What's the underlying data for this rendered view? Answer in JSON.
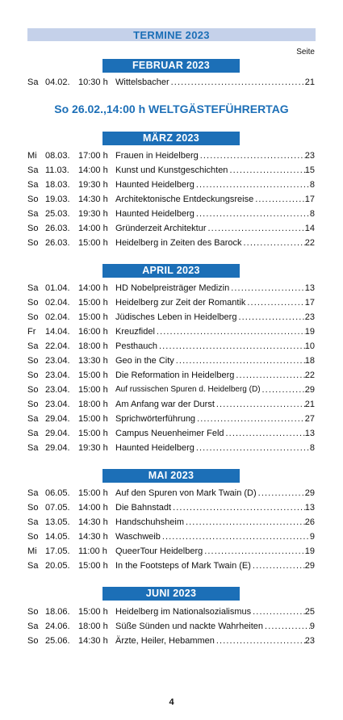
{
  "header": {
    "title": "TERMINE 2023",
    "seite_label": "Seite"
  },
  "special_event": "So 26.02.,14:00 h WELTGÄSTEFÜHRERTAG",
  "page_number": "4",
  "months": [
    {
      "label": "FEBRUAR 2023",
      "rows": [
        {
          "day": "Sa",
          "date": "04.02.",
          "time": "10:30 h",
          "title": "Wittelsbacher",
          "page": "21"
        }
      ]
    },
    {
      "label": "MÄRZ 2023",
      "rows": [
        {
          "day": "Mi",
          "date": "08.03.",
          "time": "17:00 h",
          "title": "Frauen in Heidelberg",
          "page": "23"
        },
        {
          "day": "Sa",
          "date": "11.03.",
          "time": "14:00 h",
          "title": "Kunst und Kunstgeschichten",
          "page": "15"
        },
        {
          "day": "Sa",
          "date": "18.03.",
          "time": "19:30 h",
          "title": "Haunted Heidelberg",
          "page": "8"
        },
        {
          "day": "So",
          "date": "19.03.",
          "time": "14:30 h",
          "title": "Architektonische Entdeckungsreise",
          "page": "17"
        },
        {
          "day": "Sa",
          "date": "25.03.",
          "time": "19:30 h",
          "title": "Haunted Heidelberg",
          "page": "8"
        },
        {
          "day": "So",
          "date": "26.03.",
          "time": "14:00 h",
          "title": "Gründerzeit Architektur",
          "page": "14"
        },
        {
          "day": "So",
          "date": "26.03.",
          "time": "15:00 h",
          "title": "Heidelberg in Zeiten des Barock",
          "page": "22"
        }
      ]
    },
    {
      "label": "APRIL 2023",
      "rows": [
        {
          "day": "Sa",
          "date": "01.04.",
          "time": "14:00 h",
          "title": "HD Nobelpreisträger Medizin",
          "page": "13"
        },
        {
          "day": "So",
          "date": "02.04.",
          "time": "15:00 h",
          "title": "Heidelberg zur Zeit der Romantik",
          "page": "17"
        },
        {
          "day": "So",
          "date": "02.04.",
          "time": "15:00 h",
          "title": "Jüdisches Leben in Heidelberg",
          "page": "23"
        },
        {
          "day": "Fr",
          "date": "14.04.",
          "time": "16:00 h",
          "title": "Kreuzfidel",
          "page": "19"
        },
        {
          "day": "Sa",
          "date": "22.04.",
          "time": "18:00 h",
          "title": "Pesthauch",
          "page": "10"
        },
        {
          "day": "So",
          "date": "23.04.",
          "time": "13:30 h",
          "title": "Geo in the City",
          "page": "18"
        },
        {
          "day": "So",
          "date": "23.04.",
          "time": "15:00 h",
          "title": "Die Reformation in Heidelberg",
          "page": "22"
        },
        {
          "day": "So",
          "date": "23.04.",
          "time": "15:00 h",
          "title": "Auf russischen Spuren d. Heidelberg (D)",
          "page": "29",
          "small": true
        },
        {
          "day": "So",
          "date": "23.04.",
          "time": "18:00 h",
          "title": "Am Anfang war der Durst",
          "page": "21"
        },
        {
          "day": "Sa",
          "date": "29.04.",
          "time": "15:00 h",
          "title": "Sprichwörterführung",
          "page": "27"
        },
        {
          "day": "Sa",
          "date": "29.04.",
          "time": "15:00 h",
          "title": "Campus Neuenheimer Feld",
          "page": "13"
        },
        {
          "day": "Sa",
          "date": "29.04.",
          "time": "19:30 h",
          "title": "Haunted Heidelberg",
          "page": "8"
        }
      ]
    },
    {
      "label": "MAI 2023",
      "rows": [
        {
          "day": "Sa",
          "date": "06.05.",
          "time": "15:00 h",
          "title": "Auf den Spuren von Mark Twain (D)",
          "page": "29"
        },
        {
          "day": "So",
          "date": "07.05.",
          "time": "14:00 h",
          "title": "Die Bahnstadt",
          "page": "13"
        },
        {
          "day": "Sa",
          "date": "13.05.",
          "time": "14:30 h",
          "title": "Handschuhsheim",
          "page": "26"
        },
        {
          "day": "So",
          "date": "14.05.",
          "time": "14:30 h",
          "title": "Waschweib",
          "page": "9"
        },
        {
          "day": "Mi",
          "date": "17.05.",
          "time": "11:00 h",
          "title": "QueerTour Heidelberg",
          "page": "19"
        },
        {
          "day": "Sa",
          "date": "20.05.",
          "time": "15:00 h",
          "title": "In the Footsteps of Mark Twain (E)",
          "page": "29"
        }
      ]
    },
    {
      "label": "JUNI 2023",
      "rows": [
        {
          "day": "So",
          "date": "18.06.",
          "time": "15:00 h",
          "title": "Heidelberg im Nationalsozialismus",
          "page": "25"
        },
        {
          "day": "Sa",
          "date": "24.06.",
          "time": "18:00 h",
          "title": "Süße Sünden und nackte Wahrheiten",
          "page": "9"
        },
        {
          "day": "So",
          "date": "25.06.",
          "time": "14:30 h",
          "title": "Ärzte, Heiler, Hebammen",
          "page": "23"
        }
      ]
    }
  ]
}
